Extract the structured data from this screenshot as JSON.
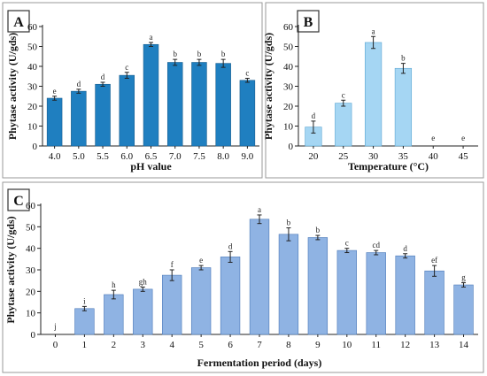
{
  "chart_data": [
    {
      "panel": "A",
      "type": "bar",
      "color": "#1f7fc0",
      "edge": "#1a5f8f",
      "ylabel": "Phytase activity (U/gds)",
      "xlabel": "pH value",
      "ylim": [
        0,
        60
      ],
      "yticks": [
        0,
        10,
        20,
        30,
        40,
        50,
        60
      ],
      "categories": [
        "4.0",
        "5.0",
        "5.5",
        "6.0",
        "6.5",
        "7.0",
        "7.5",
        "8.0",
        "9.0"
      ],
      "values": [
        24,
        27.5,
        31,
        35.5,
        51,
        42,
        42,
        41.5,
        33
      ],
      "errors": [
        1,
        1,
        1,
        1.5,
        1,
        1.5,
        1.5,
        2,
        1
      ],
      "sig": [
        "e",
        "d",
        "d",
        "c",
        "a",
        "b",
        "b",
        "b",
        "c"
      ]
    },
    {
      "panel": "B",
      "type": "bar",
      "color": "#a5d6f3",
      "edge": "#5aa5d2",
      "ylabel": "Phytase activity (U/gds)",
      "xlabel": "Temperature (°C)",
      "ylim": [
        0,
        60
      ],
      "yticks": [
        0,
        10,
        20,
        30,
        40,
        50,
        60
      ],
      "categories": [
        "20",
        "25",
        "30",
        "35",
        "40",
        "45"
      ],
      "values": [
        9.5,
        21.5,
        52,
        39,
        0,
        0
      ],
      "errors": [
        3,
        1.5,
        3,
        2.5,
        0,
        0
      ],
      "sig": [
        "d",
        "c",
        "a",
        "b",
        "e",
        "e"
      ]
    },
    {
      "panel": "C",
      "type": "bar",
      "color": "#8fb3e3",
      "edge": "#4a78b8",
      "ylabel": "Phytase activity (U/gds)",
      "xlabel": "Fermentation period (days)",
      "ylim": [
        0,
        60
      ],
      "yticks": [
        0,
        10,
        20,
        30,
        40,
        50,
        60
      ],
      "categories": [
        "0",
        "1",
        "2",
        "3",
        "4",
        "5",
        "6",
        "7",
        "8",
        "9",
        "10",
        "11",
        "12",
        "13",
        "14"
      ],
      "values": [
        0,
        12,
        18.5,
        21,
        27.5,
        31,
        36,
        53.5,
        46.5,
        45,
        39,
        38,
        36.5,
        29.5,
        23
      ],
      "errors": [
        0,
        1,
        2,
        1,
        2.5,
        1,
        2.5,
        2,
        3,
        1,
        1,
        1,
        1,
        2.5,
        1
      ],
      "sig": [
        "j",
        "i",
        "h",
        "gh",
        "f",
        "e",
        "d",
        "a",
        "b",
        "b",
        "c",
        "cd",
        "d",
        "ef",
        "g"
      ]
    }
  ]
}
